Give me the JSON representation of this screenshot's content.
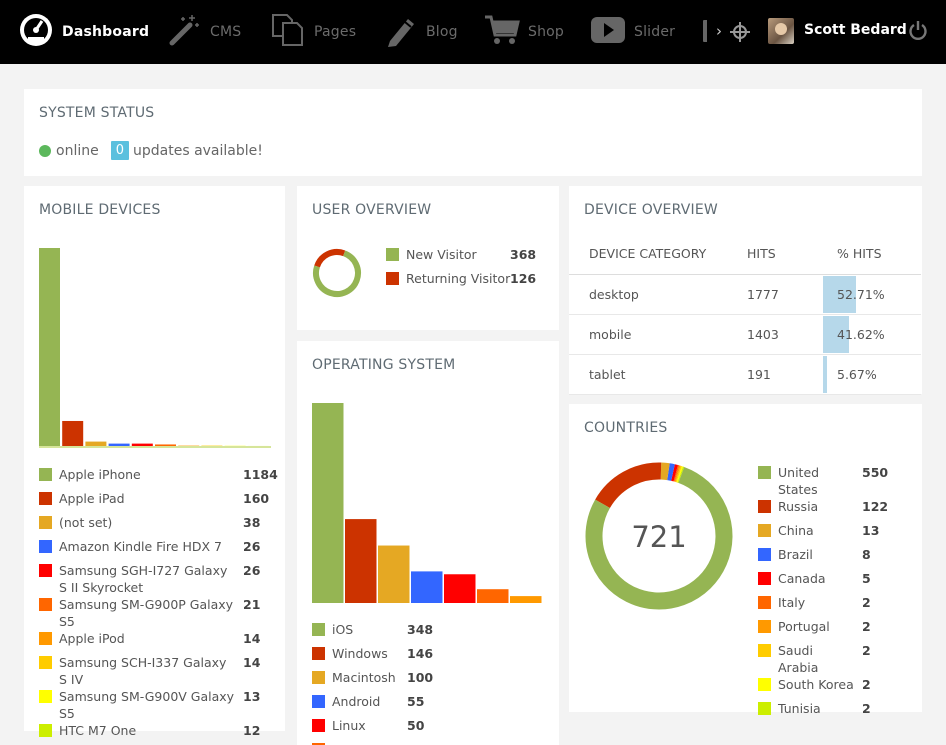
{
  "topbar": {
    "items": [
      {
        "label": "Dashboard",
        "icon": "dashboard-icon"
      },
      {
        "label": "CMS",
        "icon": "magic-wand-icon"
      },
      {
        "label": "Pages",
        "icon": "pages-icon"
      },
      {
        "label": "Blog",
        "icon": "pencil-icon"
      },
      {
        "label": "Shop",
        "icon": "cart-icon"
      },
      {
        "label": "Slider",
        "icon": "play-icon"
      }
    ],
    "more_icon": "chevron-right-icon",
    "move_icon": "move-icon",
    "user_name": "Scott Bedard",
    "power_icon": "power-icon"
  },
  "system_status": {
    "title": "SYSTEM STATUS",
    "online_label": "online",
    "updates_count": "0",
    "updates_label": "updates available!",
    "online_color": "#5cb85c"
  },
  "mobile_devices": {
    "title": "MOBILE DEVICES",
    "items": [
      {
        "name": "Apple iPhone",
        "value": "1184",
        "color": "#95b553"
      },
      {
        "name": "Apple iPad",
        "value": "160",
        "color": "#cc3300"
      },
      {
        "name": "(not set)",
        "value": "38",
        "color": "#e5a823"
      },
      {
        "name": "Amazon Kindle Fire HDX 7",
        "value": "26",
        "color": "#3366ff"
      },
      {
        "name": "Samsung SGH-I727 Galaxy S II Skyrocket",
        "value": "26",
        "color": "#ff0000"
      },
      {
        "name": "Samsung SM-G900P Galaxy S5",
        "value": "21",
        "color": "#ff6600"
      },
      {
        "name": "Apple iPod",
        "value": "14",
        "color": "#ff9900"
      },
      {
        "name": "Samsung SCH-I337 Galaxy S IV",
        "value": "14",
        "color": "#ffcc00"
      },
      {
        "name": "Samsung SM-G900V Galaxy S5",
        "value": "13",
        "color": "#ffff00"
      },
      {
        "name": "HTC M7 One",
        "value": "12",
        "color": "#ccee00"
      }
    ]
  },
  "user_overview": {
    "title": "USER OVERVIEW",
    "items": [
      {
        "name": "New Visitor",
        "value": "368",
        "color": "#95b553"
      },
      {
        "name": "Returning Visitor",
        "value": "126",
        "color": "#cc3300"
      }
    ]
  },
  "operating_system": {
    "title": "OPERATING SYSTEM",
    "items": [
      {
        "name": "iOS",
        "value": "348",
        "color": "#95b553"
      },
      {
        "name": "Windows",
        "value": "146",
        "color": "#cc3300"
      },
      {
        "name": "Macintosh",
        "value": "100",
        "color": "#e5a823"
      },
      {
        "name": "Android",
        "value": "55",
        "color": "#3366ff"
      },
      {
        "name": "Linux",
        "value": "50",
        "color": "#ff0000"
      }
    ],
    "extra_bar_colors": [
      "#ff6600",
      "#ff9900"
    ],
    "extra_bar_values": [
      24,
      12
    ]
  },
  "device_overview": {
    "title": "DEVICE OVERVIEW",
    "columns": [
      "DEVICE CATEGORY",
      "HITS",
      "% HITS"
    ],
    "rows": [
      {
        "category": "desktop",
        "hits": "1777",
        "percent": "52.71%",
        "pct": 52.71
      },
      {
        "category": "mobile",
        "hits": "1403",
        "percent": "41.62%",
        "pct": 41.62
      },
      {
        "category": "tablet",
        "hits": "191",
        "percent": "5.67%",
        "pct": 5.67
      }
    ],
    "bar_color": "#b6d8ea"
  },
  "countries": {
    "title": "COUNTRIES",
    "total": "721",
    "items": [
      {
        "name": "United States",
        "value": "550",
        "color": "#95b553"
      },
      {
        "name": "Russia",
        "value": "122",
        "color": "#cc3300"
      },
      {
        "name": "China",
        "value": "13",
        "color": "#e5a823"
      },
      {
        "name": "Brazil",
        "value": "8",
        "color": "#3366ff"
      },
      {
        "name": "Canada",
        "value": "5",
        "color": "#ff0000"
      },
      {
        "name": "Italy",
        "value": "2",
        "color": "#ff6600"
      },
      {
        "name": "Portugal",
        "value": "2",
        "color": "#ff9900"
      },
      {
        "name": "Saudi Arabia",
        "value": "2",
        "color": "#ffcc00"
      },
      {
        "name": "South Korea",
        "value": "2",
        "color": "#ffff00"
      },
      {
        "name": "Tunisia",
        "value": "2",
        "color": "#ccee00"
      }
    ]
  }
}
